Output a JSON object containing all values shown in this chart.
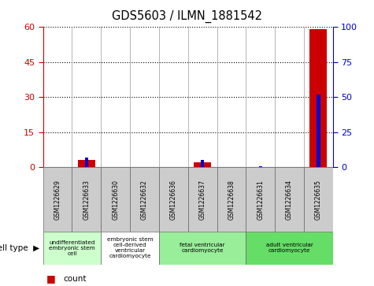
{
  "title": "GDS5603 / ILMN_1881542",
  "samples": [
    "GSM1226629",
    "GSM1226633",
    "GSM1226630",
    "GSM1226632",
    "GSM1226636",
    "GSM1226637",
    "GSM1226638",
    "GSM1226631",
    "GSM1226634",
    "GSM1226635"
  ],
  "counts": [
    0,
    3,
    0,
    0,
    0,
    2,
    0,
    0,
    0,
    59
  ],
  "percentiles": [
    0,
    7,
    0,
    0,
    0,
    5,
    0,
    1,
    0,
    52
  ],
  "ylim_left": [
    0,
    60
  ],
  "ylim_right": [
    0,
    100
  ],
  "yticks_left": [
    0,
    15,
    30,
    45,
    60
  ],
  "yticks_right": [
    0,
    25,
    50,
    75,
    100
  ],
  "cell_type_groups": [
    {
      "label": "undifferentiated\nembryonic stem\ncell",
      "start": 0,
      "end": 2,
      "color": "#ccffcc"
    },
    {
      "label": "embryonic stem\ncell-derived\nventricular\ncardiomyocyte",
      "start": 2,
      "end": 4,
      "color": "#ffffff"
    },
    {
      "label": "fetal ventricular\ncardiomyocyte",
      "start": 4,
      "end": 7,
      "color": "#99ee99"
    },
    {
      "label": "adult ventricular\ncardiomyocyte",
      "start": 7,
      "end": 10,
      "color": "#66dd66"
    }
  ],
  "bar_color_count": "#cc0000",
  "bar_color_percentile": "#0000cc",
  "tick_label_color_left": "#cc0000",
  "tick_label_color_right": "#0000cc",
  "grid_color": "#000000",
  "bg_color": "#ffffff",
  "sample_bg_color": "#cccccc",
  "bar_width": 0.6,
  "percentile_marker_size": 40
}
